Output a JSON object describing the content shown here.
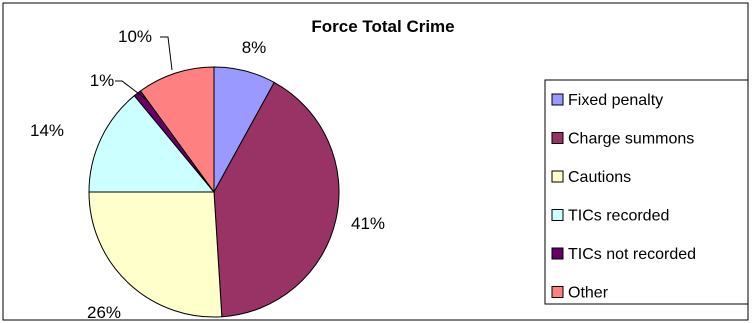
{
  "chart_data": {
    "type": "pie",
    "title": "Force Total Crime",
    "slices": [
      {
        "label": "Fixed penalty",
        "value": 8,
        "display": "8%",
        "color": "#9999ff"
      },
      {
        "label": "Charge summons",
        "value": 41,
        "display": "41%",
        "color": "#993366"
      },
      {
        "label": "Cautions",
        "value": 26,
        "display": "26%",
        "color": "#ffffcc"
      },
      {
        "label": "TICs recorded",
        "value": 14,
        "display": "14%",
        "color": "#ccffff"
      },
      {
        "label": "TICs not recorded",
        "value": 1,
        "display": "1%",
        "color": "#660066"
      },
      {
        "label": "Other",
        "value": 10,
        "display": "10%",
        "color": "#ff8080"
      }
    ],
    "legend_position": "right",
    "start_angle": "12 o'clock",
    "direction": "clockwise"
  }
}
